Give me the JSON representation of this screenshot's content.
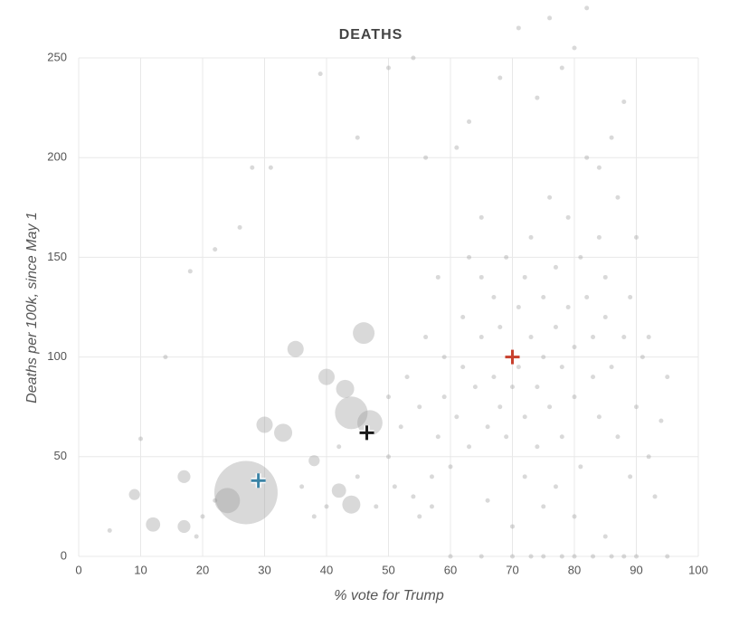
{
  "chart_data": {
    "type": "scatter",
    "title": "DEATHS",
    "x_label": "% vote for Trump",
    "y_label": "Deaths per 100k, since May 1",
    "xlim": [
      0,
      100
    ],
    "xticks": [
      0,
      10,
      20,
      30,
      40,
      50,
      60,
      70,
      80,
      90,
      100
    ],
    "ylim": [
      0,
      250
    ],
    "yticks": [
      0,
      50,
      100,
      150,
      200,
      250
    ],
    "grid": true,
    "color": "#9a9a9a",
    "x": [
      27,
      24,
      44,
      47,
      46,
      35,
      40,
      33,
      30,
      43,
      17,
      12,
      17,
      9,
      42,
      44,
      38,
      5,
      10,
      14,
      18,
      22,
      26,
      28,
      31,
      39,
      45,
      50,
      54,
      56,
      61,
      63,
      65,
      67,
      68,
      71,
      74,
      76,
      78,
      80,
      82,
      84,
      86,
      88,
      90,
      92,
      94,
      55,
      57,
      58,
      59,
      60,
      61,
      62,
      62,
      63,
      64,
      65,
      65,
      66,
      67,
      68,
      68,
      69,
      69,
      70,
      71,
      71,
      72,
      72,
      73,
      73,
      74,
      74,
      75,
      75,
      76,
      76,
      77,
      77,
      78,
      78,
      79,
      79,
      80,
      80,
      81,
      81,
      82,
      82,
      83,
      83,
      84,
      84,
      85,
      85,
      86,
      87,
      87,
      88,
      89,
      89,
      90,
      91,
      92,
      93,
      95,
      50,
      51,
      52,
      53,
      54,
      55,
      56,
      57,
      58,
      59,
      40,
      38,
      36,
      45,
      48,
      42,
      50,
      20,
      22,
      19,
      60,
      65,
      70,
      73,
      75,
      78,
      80,
      83,
      86,
      88,
      90,
      95,
      66,
      70,
      75,
      80,
      85,
      72,
      77,
      63
    ],
    "values": [
      32,
      28,
      72,
      67,
      112,
      104,
      90,
      62,
      66,
      84,
      40,
      16,
      15,
      31,
      33,
      26,
      48,
      13,
      59,
      100,
      143,
      154,
      165,
      195,
      195,
      242,
      210,
      245,
      250,
      200,
      205,
      218,
      170,
      130,
      240,
      265,
      230,
      270,
      245,
      255,
      275,
      195,
      210,
      228,
      160,
      110,
      68,
      20,
      40,
      60,
      80,
      45,
      70,
      95,
      120,
      55,
      85,
      110,
      140,
      65,
      90,
      75,
      115,
      150,
      60,
      85,
      125,
      95,
      70,
      140,
      110,
      160,
      85,
      55,
      130,
      100,
      180,
      75,
      115,
      145,
      95,
      60,
      170,
      125,
      105,
      80,
      150,
      45,
      130,
      200,
      90,
      110,
      160,
      70,
      120,
      140,
      95,
      60,
      180,
      110,
      130,
      40,
      75,
      100,
      50,
      30,
      90,
      50,
      35,
      65,
      90,
      30,
      75,
      110,
      25,
      140,
      100,
      25,
      20,
      35,
      40,
      25,
      55,
      80,
      20,
      28,
      10,
      0,
      0,
      0,
      0,
      0,
      0,
      0,
      0,
      0,
      0,
      0,
      0,
      28,
      15,
      25,
      20,
      10,
      40,
      35,
      150
    ],
    "sizes": [
      196,
      31,
      52,
      31,
      23,
      13,
      13,
      16,
      13,
      16,
      8,
      10,
      8,
      6,
      10,
      16,
      6,
      1,
      1,
      1,
      1,
      1,
      1,
      1,
      1,
      1,
      1,
      1,
      1,
      1,
      1,
      1,
      1,
      1,
      1,
      1,
      1,
      1,
      1,
      1,
      1,
      1,
      1,
      1,
      1,
      1,
      1,
      1,
      1,
      1,
      1,
      1,
      1,
      1,
      1,
      1,
      1,
      1,
      1,
      1,
      1,
      1,
      1,
      1,
      1,
      1,
      1,
      1,
      1,
      1,
      1,
      1,
      1,
      1,
      1,
      1,
      1,
      1,
      1,
      1,
      1,
      1,
      1,
      1,
      1,
      1,
      1,
      1,
      1,
      1,
      1,
      1,
      1,
      1,
      1,
      1,
      1,
      1,
      1,
      1,
      1,
      1,
      1,
      1,
      1,
      1,
      1,
      1,
      1,
      1,
      1,
      1,
      1,
      1,
      1,
      1,
      1,
      1,
      1,
      1,
      1,
      1,
      1,
      1,
      1,
      1,
      1,
      1,
      1,
      1,
      1,
      1,
      1,
      1,
      1,
      1,
      1,
      1,
      1,
      1,
      1,
      1,
      1,
      1,
      1,
      1,
      1
    ],
    "markers": [
      {
        "x": 29,
        "y": 38,
        "color": "#3b84a6"
      },
      {
        "x": 46.5,
        "y": 62,
        "color": "#1a1a1a"
      },
      {
        "x": 70,
        "y": 100,
        "color": "#c8412e"
      }
    ]
  }
}
